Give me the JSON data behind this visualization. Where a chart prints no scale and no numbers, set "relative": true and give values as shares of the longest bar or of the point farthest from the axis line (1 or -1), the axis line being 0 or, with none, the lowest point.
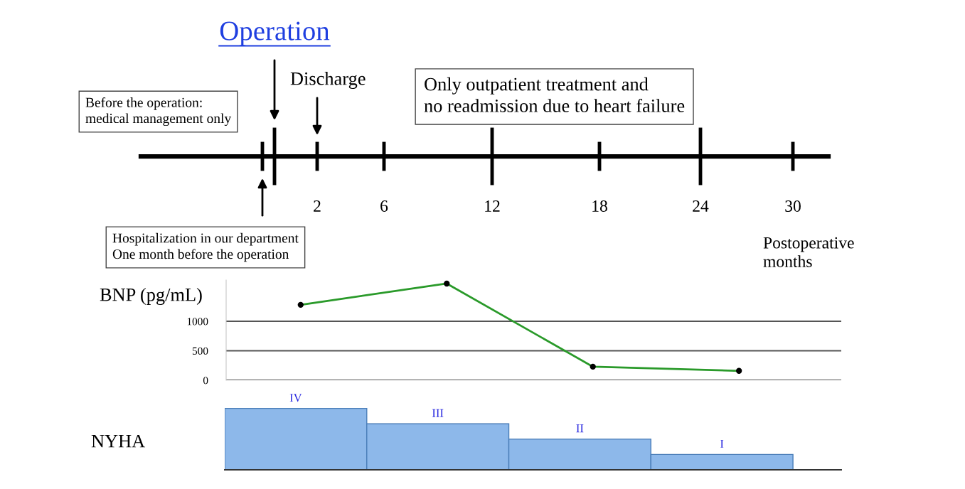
{
  "chart_data": [
    {
      "type": "other",
      "title": "Operation",
      "xlabel": "Postoperative months",
      "annotations": [
        "Before the operation:\nmedical management only",
        "Discharge",
        "Only outpatient treatment and\nno readmission due to heart failure",
        "Hospitalization in our department\nOne month before the operation",
        "2",
        "6",
        "12",
        "18",
        "24",
        "30"
      ]
    },
    {
      "type": "line",
      "ylabel": "BNP (pg/mL)",
      "categories": [
        null,
        null,
        null,
        null
      ],
      "ylim": [
        0,
        1700
      ],
      "yticks": [
        0,
        500,
        1000
      ],
      "grid": "y",
      "tick_labels": "y",
      "marker": "circle",
      "series": [
        {
          "color": "#2a9a2a",
          "values": [
            1280,
            1640,
            230,
            160
          ]
        }
      ]
    },
    {
      "type": "bar",
      "relative": true,
      "ylabel": "NYHA",
      "categories": [
        "IV",
        "III",
        "II",
        "I"
      ],
      "values": [
        1,
        0.75,
        0.5,
        0.25
      ],
      "color": "#8db8ea"
    }
  ]
}
